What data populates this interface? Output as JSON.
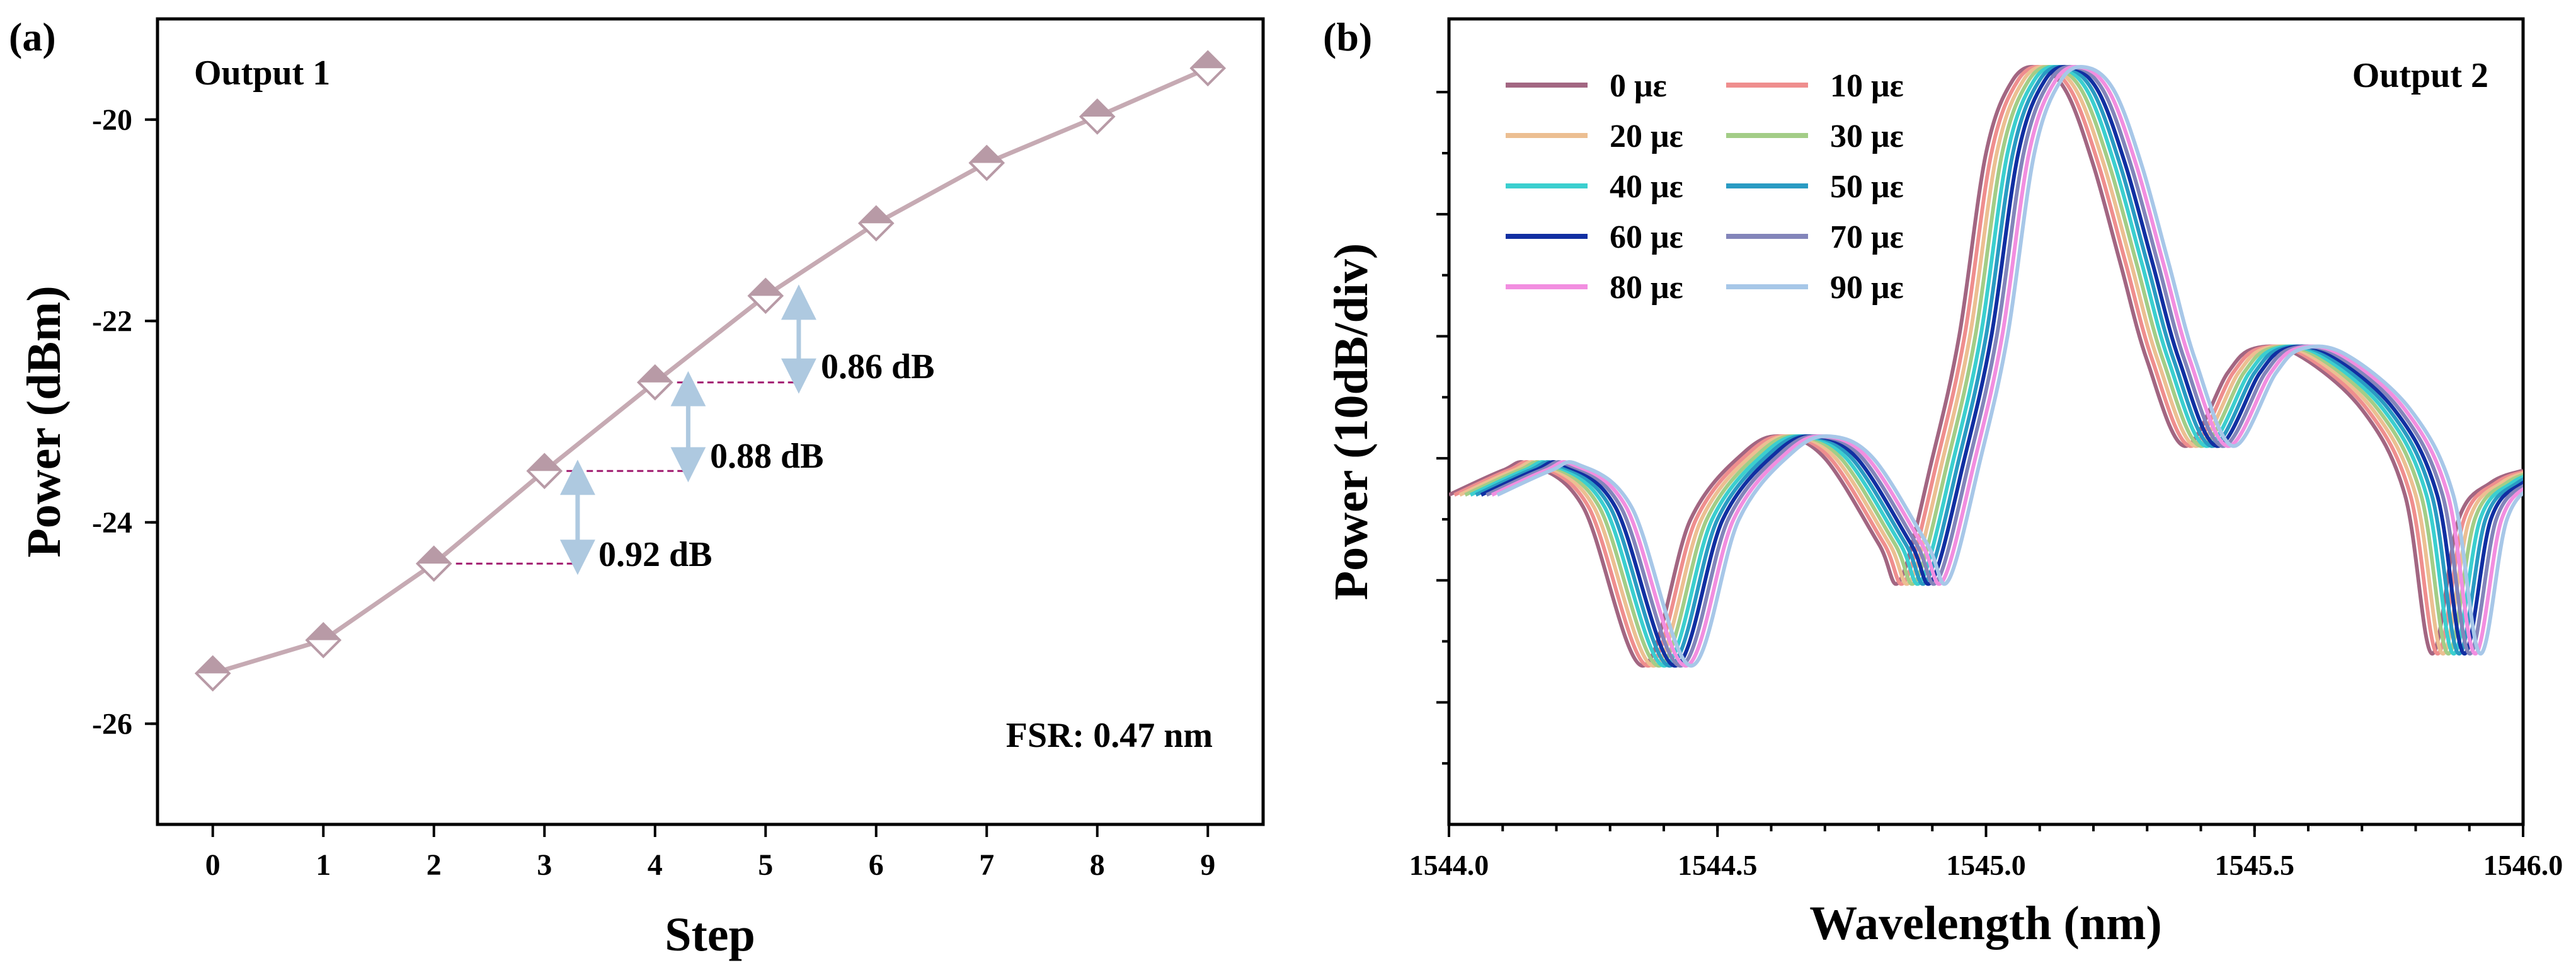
{
  "panel_a": {
    "label": "(a)",
    "annotation": "Output 1",
    "fsr_text": "FSR: 0.47 nm",
    "step_labels": [
      "0.92 dB",
      "0.88 dB",
      "0.86 dB"
    ],
    "line_color": "#c6aab3",
    "marker_color": "#b89aa6",
    "arrow_color": "#aec9e0",
    "guide_color": "#a0196e"
  },
  "panel_b": {
    "label": "(b)",
    "annotation": "Output 2",
    "legend": [
      {
        "name": "0 με",
        "color": "#a26682"
      },
      {
        "name": "10 με",
        "color": "#ef8e8e"
      },
      {
        "name": "20 με",
        "color": "#ecbf92"
      },
      {
        "name": "30 με",
        "color": "#a3cd87"
      },
      {
        "name": "40 με",
        "color": "#3bcfcf"
      },
      {
        "name": "50 με",
        "color": "#2a9bc3"
      },
      {
        "name": "60 με",
        "color": "#112fa2"
      },
      {
        "name": "70 με",
        "color": "#8385ba"
      },
      {
        "name": "80 με",
        "color": "#f28ee0"
      },
      {
        "name": "90 με",
        "color": "#a7c7e8"
      }
    ]
  },
  "chart_data": [
    {
      "type": "line",
      "title": "",
      "xlabel": "Step",
      "ylabel": "Power (dBm)",
      "x": [
        0,
        1,
        2,
        3,
        4,
        5,
        6,
        7,
        8,
        9
      ],
      "series": [
        {
          "name": "Output 1",
          "values": [
            -25.5,
            -25.17,
            -24.41,
            -23.49,
            -22.61,
            -21.75,
            -21.03,
            -20.43,
            -19.97,
            -19.49
          ]
        }
      ],
      "xlim": [
        -0.5,
        9.5
      ],
      "ylim": [
        -27,
        -19
      ],
      "xticks": [
        "0",
        "1",
        "2",
        "3",
        "4",
        "5",
        "6",
        "7",
        "8",
        "9"
      ],
      "yticks": [
        -26,
        -24,
        -22,
        -20
      ],
      "ytick_labels": [
        "-26",
        "-24",
        "-22",
        "-20"
      ],
      "annotations": [
        {
          "from_step": 2,
          "to_step": 3,
          "text": "0.92 dB"
        },
        {
          "from_step": 3,
          "to_step": 4,
          "text": "0.88 dB"
        },
        {
          "from_step": 4,
          "to_step": 5,
          "text": "0.86 dB"
        }
      ]
    },
    {
      "type": "line",
      "title": "",
      "xlabel": "Wavelength (nm)",
      "ylabel": "Power (10dB/div)",
      "xlim": [
        1544.0,
        1546.0
      ],
      "xticks": [
        "1544.0",
        "1544.5",
        "1545.0",
        "1545.5",
        "1546.0"
      ],
      "ylim": [
        -60,
        6
      ],
      "y_divisions_db": 10,
      "base_series": {
        "x": [
          1544.0,
          1544.1,
          1544.15,
          1544.25,
          1544.36,
          1544.45,
          1544.55,
          1544.62,
          1544.7,
          1544.8,
          1544.84,
          1544.9,
          1544.95,
          1545.0,
          1545.05,
          1545.1,
          1545.15,
          1545.2,
          1545.25,
          1545.3,
          1545.37,
          1545.45,
          1545.5,
          1545.58,
          1545.7,
          1545.78,
          1545.83,
          1545.88,
          1545.94,
          1546.0
        ],
        "values": [
          -33,
          -31,
          -30.5,
          -34,
          -47,
          -35,
          -29.5,
          -28.2,
          -30,
          -37,
          -40,
          -30,
          -20,
          -5,
          1,
          2,
          0,
          -6,
          -14,
          -22,
          -29,
          -23,
          -21,
          -21.5,
          -26,
          -33,
          -46,
          -35,
          -32,
          -31
        ]
      },
      "series": [
        {
          "name": "0 με",
          "shift_nm": 0.0
        },
        {
          "name": "10 με",
          "shift_nm": 0.01
        },
        {
          "name": "20 με",
          "shift_nm": 0.02
        },
        {
          "name": "30 με",
          "shift_nm": 0.03
        },
        {
          "name": "40 με",
          "shift_nm": 0.04
        },
        {
          "name": "50 με",
          "shift_nm": 0.05
        },
        {
          "name": "60 με",
          "shift_nm": 0.06
        },
        {
          "name": "70 με",
          "shift_nm": 0.07
        },
        {
          "name": "80 με",
          "shift_nm": 0.08
        },
        {
          "name": "90 με",
          "shift_nm": 0.09
        }
      ]
    }
  ]
}
